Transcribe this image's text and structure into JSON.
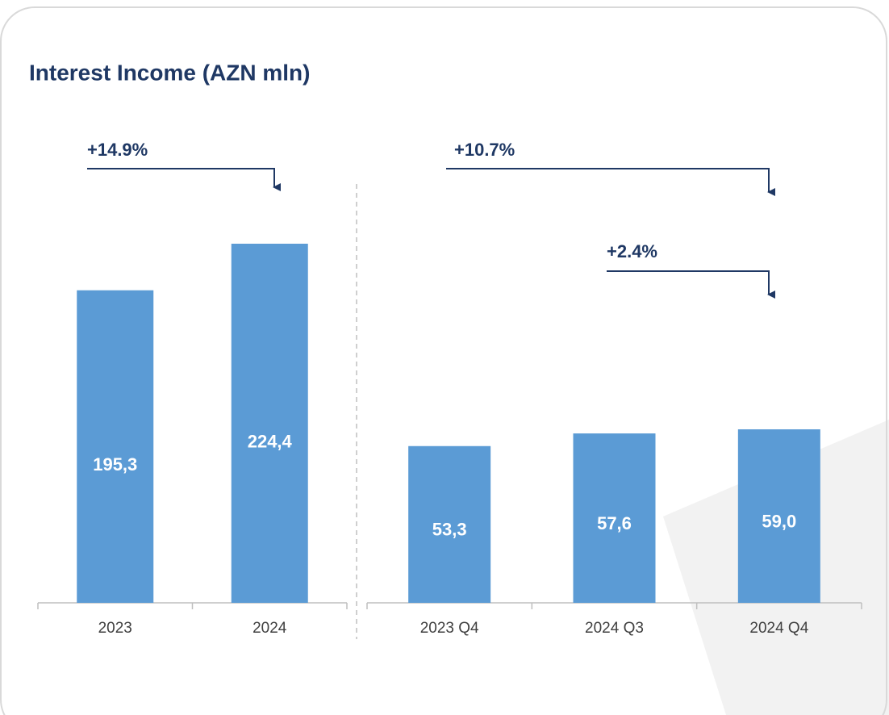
{
  "chart_data": [
    {
      "type": "bar",
      "title": "Interest Income (AZN mln)",
      "categories": [
        "2023",
        "2024"
      ],
      "values": [
        195.3,
        224.4
      ],
      "value_labels": [
        "195,3",
        "224,4"
      ],
      "color": "#5b9bd5",
      "annotations": [
        "+14.9%"
      ]
    },
    {
      "type": "bar",
      "categories": [
        "2023 Q4",
        "2024 Q3",
        "2024 Q4"
      ],
      "values": [
        53.3,
        57.6,
        59.0
      ],
      "value_labels": [
        "53,3",
        "57,6",
        "59,0"
      ],
      "color": "#5b9bd5",
      "annotations": [
        "+10.7%",
        "+2.4%"
      ]
    }
  ]
}
